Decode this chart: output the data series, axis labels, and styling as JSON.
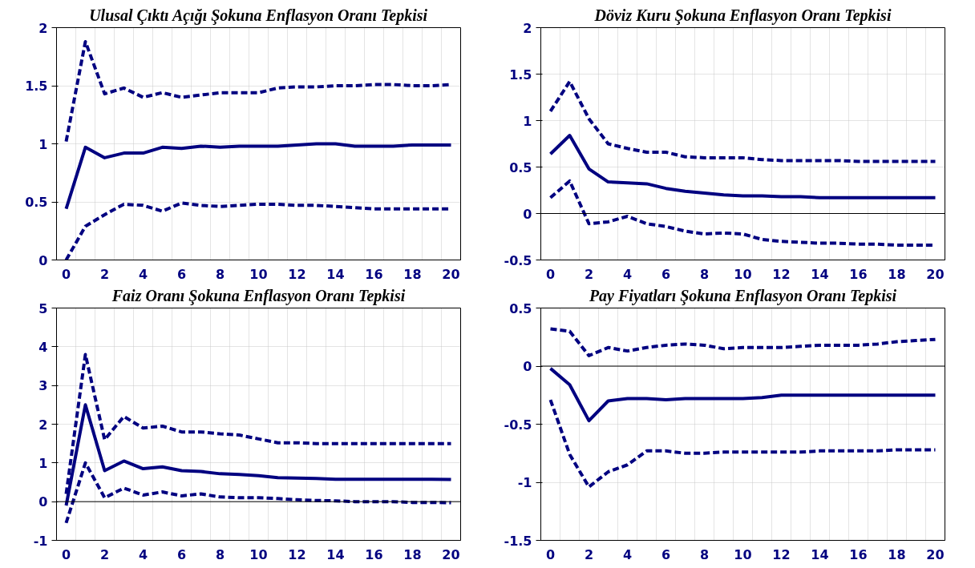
{
  "chart_data": [
    {
      "type": "line",
      "title": "Ulusal Çıktı Açığı Şokuna Enflasyon Oranı Tepkisi",
      "categories": [
        "0",
        null,
        "2",
        null,
        "4",
        null,
        "6",
        null,
        "8",
        null,
        "10",
        null,
        "12",
        null,
        "14",
        null,
        "16",
        null,
        "18",
        null,
        "20"
      ],
      "ylim": [
        0,
        2
      ],
      "yticks": [
        0,
        0.5,
        1,
        1.5,
        2
      ],
      "grid": true,
      "series": [
        {
          "color": "#000080",
          "line_style": "dashed",
          "values": [
            1.02,
            1.88,
            1.43,
            1.48,
            1.4,
            1.44,
            1.4,
            1.42,
            1.44,
            1.44,
            1.44,
            1.48,
            1.49,
            1.49,
            1.5,
            1.5,
            1.51,
            1.51,
            1.5,
            1.5,
            1.51
          ]
        },
        {
          "color": "#000080",
          "line_style": "solid",
          "values": [
            0.44,
            0.97,
            0.88,
            0.92,
            0.92,
            0.97,
            0.96,
            0.98,
            0.97,
            0.98,
            0.98,
            0.98,
            0.99,
            1.0,
            1.0,
            0.98,
            0.98,
            0.98,
            0.99,
            0.99,
            0.99
          ]
        },
        {
          "color": "#000080",
          "line_style": "dashed",
          "values": [
            0.0,
            0.29,
            0.39,
            0.48,
            0.47,
            0.42,
            0.49,
            0.47,
            0.46,
            0.47,
            0.48,
            0.48,
            0.47,
            0.47,
            0.46,
            0.45,
            0.44,
            0.44,
            0.44,
            0.44,
            0.44
          ]
        }
      ]
    },
    {
      "type": "line",
      "title": "Döviz Kuru Şokuna Enflasyon Oranı Tepkisi",
      "categories": [
        "0",
        null,
        "2",
        null,
        "4",
        null,
        "6",
        null,
        "8",
        null,
        "10",
        null,
        "12",
        null,
        "14",
        null,
        "16",
        null,
        "18",
        null,
        "20"
      ],
      "ylim": [
        -0.5,
        2
      ],
      "yticks": [
        -0.5,
        0,
        0.5,
        1,
        1.5,
        2
      ],
      "grid": true,
      "ref_lines": [
        {
          "axis": "y",
          "value": 0,
          "color": "#000000"
        }
      ],
      "series": [
        {
          "color": "#000080",
          "line_style": "dashed",
          "values": [
            1.1,
            1.42,
            1.02,
            0.75,
            0.7,
            0.66,
            0.66,
            0.61,
            0.6,
            0.6,
            0.6,
            0.58,
            0.57,
            0.57,
            0.57,
            0.57,
            0.56,
            0.56,
            0.56,
            0.56,
            0.56
          ]
        },
        {
          "color": "#000080",
          "line_style": "solid",
          "values": [
            0.64,
            0.84,
            0.48,
            0.34,
            0.33,
            0.32,
            0.27,
            0.24,
            0.22,
            0.2,
            0.19,
            0.19,
            0.18,
            0.18,
            0.17,
            0.17,
            0.17,
            0.17,
            0.17,
            0.17,
            0.17
          ]
        },
        {
          "color": "#000080",
          "line_style": "dashed",
          "values": [
            0.17,
            0.35,
            -0.11,
            -0.09,
            -0.03,
            -0.11,
            -0.14,
            -0.19,
            -0.22,
            -0.21,
            -0.22,
            -0.28,
            -0.3,
            -0.31,
            -0.32,
            -0.32,
            -0.33,
            -0.33,
            -0.34,
            -0.34,
            -0.34
          ]
        }
      ]
    },
    {
      "type": "line",
      "title": "Faiz Oranı Şokuna Enflasyon Oranı Tepkisi",
      "categories": [
        "0",
        null,
        "2",
        null,
        "4",
        null,
        "6",
        null,
        "8",
        null,
        "10",
        null,
        "12",
        null,
        "14",
        null,
        "16",
        null,
        "18",
        null,
        "20"
      ],
      "ylim": [
        -1,
        5
      ],
      "yticks": [
        -1,
        0,
        1,
        2,
        3,
        4,
        5
      ],
      "grid": true,
      "ref_lines": [
        {
          "axis": "y",
          "value": 0,
          "color": "#000000"
        }
      ],
      "series": [
        {
          "color": "#000080",
          "line_style": "dashed",
          "values": [
            0.2,
            3.8,
            1.6,
            2.2,
            1.9,
            1.95,
            1.8,
            1.8,
            1.75,
            1.72,
            1.62,
            1.52,
            1.52,
            1.5,
            1.5,
            1.5,
            1.5,
            1.5,
            1.5,
            1.5,
            1.5
          ]
        },
        {
          "color": "#000080",
          "line_style": "solid",
          "values": [
            -0.1,
            2.5,
            0.8,
            1.05,
            0.85,
            0.9,
            0.8,
            0.78,
            0.72,
            0.7,
            0.67,
            0.62,
            0.61,
            0.6,
            0.58,
            0.58,
            0.58,
            0.58,
            0.58,
            0.58,
            0.57
          ]
        },
        {
          "color": "#000080",
          "line_style": "dashed",
          "values": [
            -0.55,
            1.0,
            0.1,
            0.35,
            0.17,
            0.25,
            0.15,
            0.2,
            0.12,
            0.1,
            0.1,
            0.08,
            0.05,
            0.03,
            0.02,
            0.0,
            0.0,
            0.0,
            -0.02,
            -0.02,
            -0.03
          ]
        }
      ]
    },
    {
      "type": "line",
      "title": "Pay Fiyatları Şokuna Enflasyon Oranı Tepkisi",
      "categories": [
        "0",
        null,
        "2",
        null,
        "4",
        null,
        "6",
        null,
        "8",
        null,
        "10",
        null,
        "12",
        null,
        "14",
        null,
        "16",
        null,
        "18",
        null,
        "20"
      ],
      "ylim": [
        -1.5,
        0.5
      ],
      "yticks": [
        -1.5,
        -1,
        -0.5,
        0,
        0.5
      ],
      "grid": true,
      "ref_lines": [
        {
          "axis": "y",
          "value": 0,
          "color": "#000000"
        }
      ],
      "series": [
        {
          "color": "#000080",
          "line_style": "dashed",
          "values": [
            0.32,
            0.3,
            0.09,
            0.16,
            0.13,
            0.16,
            0.18,
            0.19,
            0.18,
            0.15,
            0.16,
            0.16,
            0.16,
            0.17,
            0.18,
            0.18,
            0.18,
            0.19,
            0.21,
            0.22,
            0.23
          ]
        },
        {
          "color": "#000080",
          "line_style": "solid",
          "values": [
            -0.02,
            -0.16,
            -0.47,
            -0.3,
            -0.28,
            -0.28,
            -0.29,
            -0.28,
            -0.28,
            -0.28,
            -0.28,
            -0.27,
            -0.25,
            -0.25,
            -0.25,
            -0.25,
            -0.25,
            -0.25,
            -0.25,
            -0.25,
            -0.25
          ]
        },
        {
          "color": "#000080",
          "line_style": "dashed",
          "values": [
            -0.29,
            -0.76,
            -1.04,
            -0.91,
            -0.85,
            -0.73,
            -0.73,
            -0.75,
            -0.75,
            -0.74,
            -0.74,
            -0.74,
            -0.74,
            -0.74,
            -0.73,
            -0.73,
            -0.73,
            -0.73,
            -0.72,
            -0.72,
            -0.72
          ]
        }
      ]
    }
  ]
}
